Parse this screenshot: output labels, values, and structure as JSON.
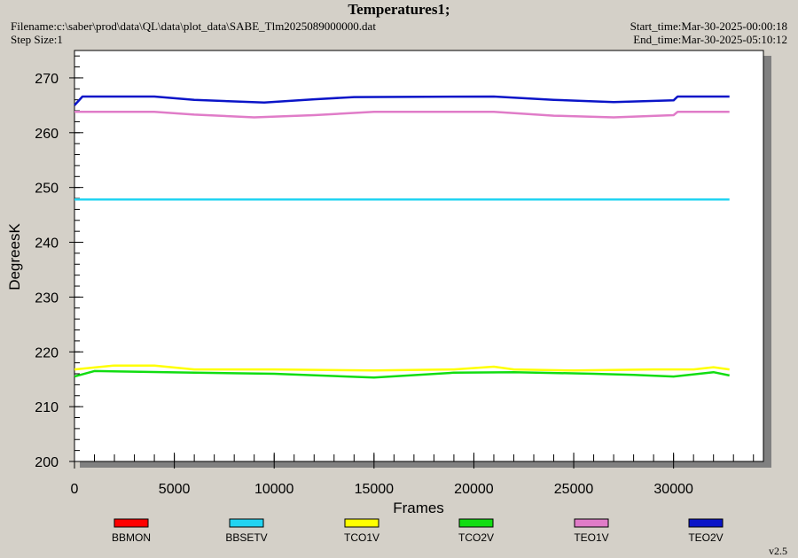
{
  "header": {
    "title": "Temperatures1;",
    "filename": "Filename:c:\\saber\\prod\\data\\QL\\data\\plot_data\\SABE_Tlm2025089000000.dat",
    "step_size": "Step Size:1",
    "start_time": "Start_time:Mar-30-2025-00:00:18",
    "end_time": "End_time:Mar-30-2025-05:10:12"
  },
  "version": "v2.5",
  "chart_data": {
    "type": "line",
    "title": "Temperatures1;",
    "xlabel": "Frames",
    "ylabel": "DegreesK",
    "xlim": [
      0,
      34500
    ],
    "ylim": [
      200,
      275
    ],
    "x_ticks": [
      0,
      5000,
      10000,
      15000,
      20000,
      25000,
      30000
    ],
    "y_ticks": [
      200,
      210,
      220,
      230,
      240,
      250,
      260,
      270
    ],
    "grid": false,
    "legend_position": "bottom",
    "series": [
      {
        "name": "BBMON",
        "color": "#ff0000",
        "points": []
      },
      {
        "name": "BBSETV",
        "color": "#22d4f2",
        "points": [
          [
            0,
            247.8
          ],
          [
            5000,
            247.8
          ],
          [
            10000,
            247.8
          ],
          [
            15000,
            247.8
          ],
          [
            20000,
            247.8
          ],
          [
            25000,
            247.8
          ],
          [
            30000,
            247.8
          ],
          [
            32800,
            247.8
          ]
        ]
      },
      {
        "name": "TCO1V",
        "color": "#ffff00",
        "points": [
          [
            0,
            216.8
          ],
          [
            2000,
            217.5
          ],
          [
            4000,
            217.5
          ],
          [
            6000,
            216.8
          ],
          [
            10000,
            216.8
          ],
          [
            15000,
            216.6
          ],
          [
            19000,
            216.8
          ],
          [
            21000,
            217.3
          ],
          [
            22000,
            216.8
          ],
          [
            25000,
            216.6
          ],
          [
            29000,
            216.8
          ],
          [
            31000,
            216.8
          ],
          [
            32000,
            217.2
          ],
          [
            32800,
            216.8
          ]
        ]
      },
      {
        "name": "TCO2V",
        "color": "#11dd11",
        "points": [
          [
            0,
            215.5
          ],
          [
            1000,
            216.5
          ],
          [
            6000,
            216.2
          ],
          [
            10000,
            216.0
          ],
          [
            15000,
            215.3
          ],
          [
            19000,
            216.2
          ],
          [
            22000,
            216.3
          ],
          [
            26000,
            216.0
          ],
          [
            28000,
            215.8
          ],
          [
            30000,
            215.5
          ],
          [
            32000,
            216.3
          ],
          [
            32800,
            215.7
          ]
        ]
      },
      {
        "name": "TEO1V",
        "color": "#e07cc8",
        "points": [
          [
            0,
            263.8
          ],
          [
            4000,
            263.8
          ],
          [
            6000,
            263.3
          ],
          [
            9000,
            262.8
          ],
          [
            12000,
            263.2
          ],
          [
            15000,
            263.8
          ],
          [
            21000,
            263.8
          ],
          [
            24000,
            263.1
          ],
          [
            27000,
            262.8
          ],
          [
            30000,
            263.2
          ],
          [
            30200,
            263.8
          ],
          [
            32800,
            263.8
          ]
        ]
      },
      {
        "name": "TEO2V",
        "color": "#0a14c8",
        "points": [
          [
            0,
            265.0
          ],
          [
            400,
            266.6
          ],
          [
            4000,
            266.6
          ],
          [
            6000,
            266.0
          ],
          [
            9500,
            265.5
          ],
          [
            12000,
            266.1
          ],
          [
            14000,
            266.5
          ],
          [
            21000,
            266.6
          ],
          [
            24000,
            266.0
          ],
          [
            27000,
            265.6
          ],
          [
            30000,
            265.9
          ],
          [
            30200,
            266.6
          ],
          [
            32800,
            266.6
          ]
        ]
      }
    ]
  }
}
